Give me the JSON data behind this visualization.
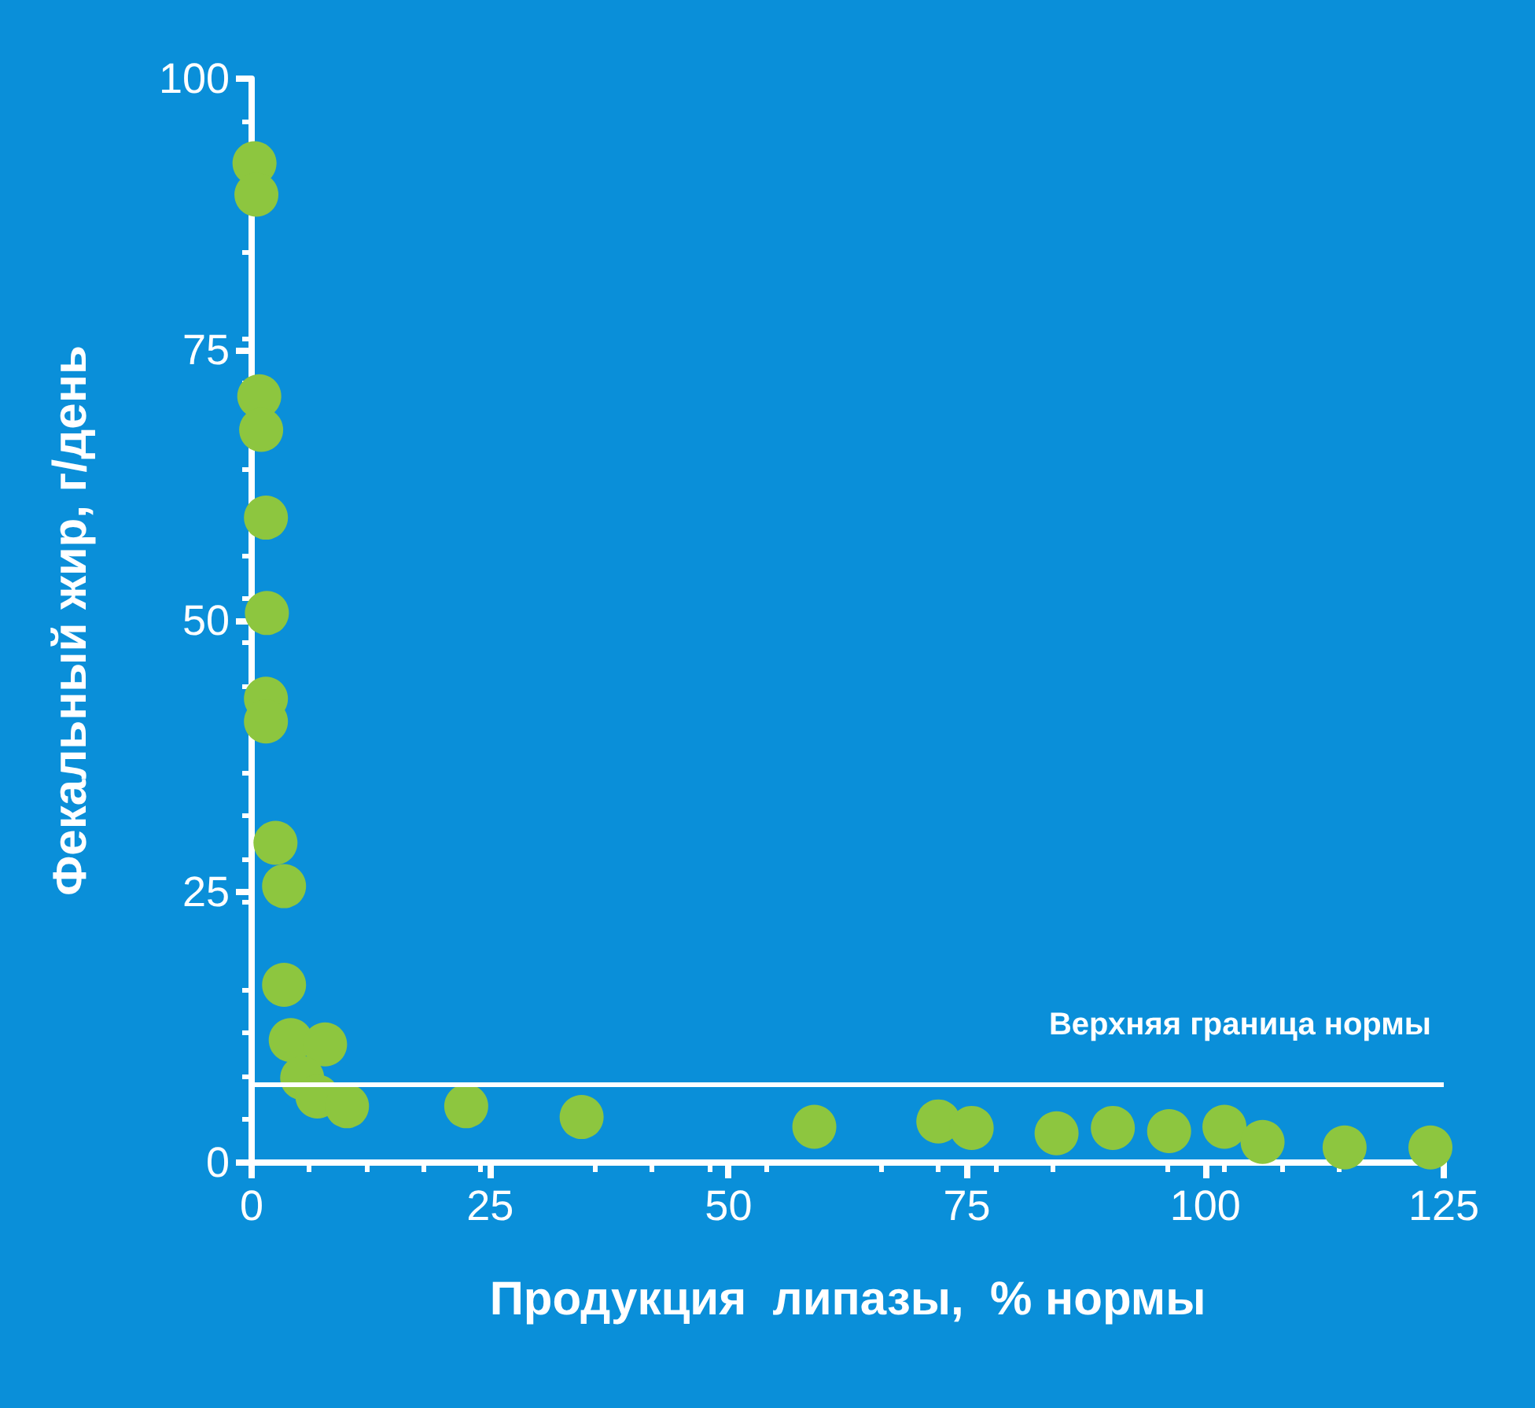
{
  "chart_data": {
    "type": "scatter",
    "xlabel": "Продукция  липазы,  % нормы",
    "ylabel": "Фекальный жир, г/день",
    "x": [
      0.3,
      0.5,
      0.8,
      1,
      1.5,
      1.6,
      1.5,
      1.5,
      2.5,
      3.4,
      3.4,
      4.1,
      7.7,
      5.3,
      6.9,
      10,
      22.5,
      34.6,
      59,
      72,
      75.5,
      84.4,
      90.3,
      96.2,
      102,
      106,
      114.6,
      123.6
    ],
    "values": [
      92.2,
      89.3,
      70.7,
      67.6,
      59.5,
      50.7,
      42.8,
      40.7,
      29.5,
      25.5,
      16.4,
      11.3,
      10.9,
      7.8,
      6.1,
      5.2,
      5.2,
      4.2,
      3.3,
      3.8,
      3.2,
      2.7,
      3.2,
      2.9,
      3.3,
      1.9,
      1.4,
      1.4
    ],
    "color": "#8dc63f",
    "marker": "circle",
    "xlim": [
      0,
      125
    ],
    "xticks": [
      0,
      25,
      50,
      75,
      100,
      125
    ],
    "ylim": [
      0,
      100
    ],
    "yticks": [
      0,
      25,
      50,
      75,
      100
    ],
    "ref_lines": [
      {
        "axis": "y",
        "value": 7.2,
        "label": "Верхняя граница нормы",
        "color": "#ffffff"
      }
    ],
    "grid": false
  }
}
